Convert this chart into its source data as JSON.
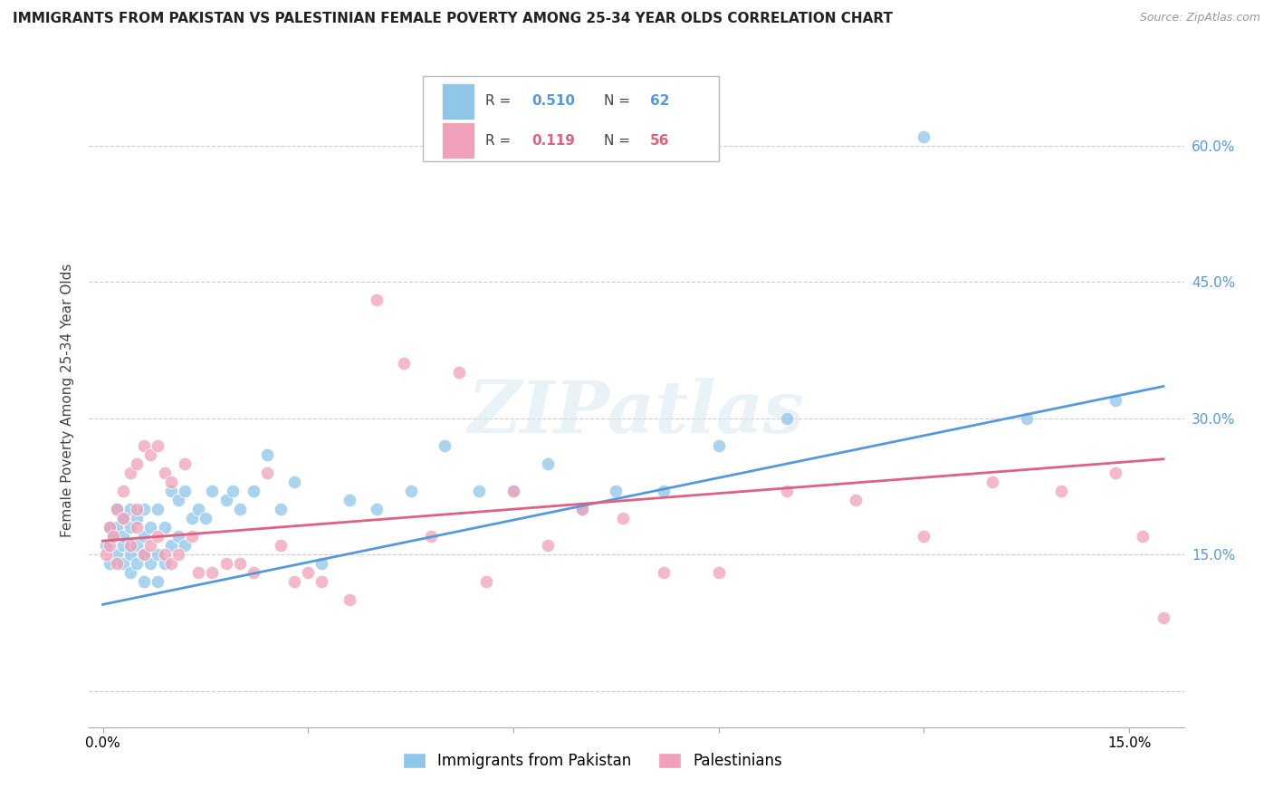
{
  "title": "IMMIGRANTS FROM PAKISTAN VS PALESTINIAN FEMALE POVERTY AMONG 25-34 YEAR OLDS CORRELATION CHART",
  "source": "Source: ZipAtlas.com",
  "ylabel": "Female Poverty Among 25-34 Year Olds",
  "y_ticks": [
    0.0,
    0.15,
    0.3,
    0.45,
    0.6
  ],
  "y_tick_labels": [
    "",
    "15.0%",
    "30.0%",
    "45.0%",
    "60.0%"
  ],
  "x_ticks": [
    0.0,
    0.03,
    0.06,
    0.09,
    0.12,
    0.15
  ],
  "x_tick_labels": [
    "0.0%",
    "",
    "",
    "",
    "",
    "15.0%"
  ],
  "xlim": [
    -0.002,
    0.158
  ],
  "ylim": [
    -0.04,
    0.68
  ],
  "blue_color": "#8ec6e8",
  "pink_color": "#f0a0b8",
  "blue_line_color": "#5599dd",
  "pink_line_color": "#e06080",
  "legend_R1": "0.510",
  "legend_N1": "62",
  "legend_R2": "0.119",
  "legend_N2": "56",
  "label1": "Immigrants from Pakistan",
  "label2": "Palestinians",
  "watermark": "ZIPatlas",
  "blue_scatter_x": [
    0.0005,
    0.001,
    0.001,
    0.0015,
    0.002,
    0.002,
    0.002,
    0.003,
    0.003,
    0.003,
    0.003,
    0.004,
    0.004,
    0.004,
    0.004,
    0.005,
    0.005,
    0.005,
    0.006,
    0.006,
    0.006,
    0.006,
    0.007,
    0.007,
    0.008,
    0.008,
    0.008,
    0.009,
    0.009,
    0.01,
    0.01,
    0.011,
    0.011,
    0.012,
    0.012,
    0.013,
    0.014,
    0.015,
    0.016,
    0.018,
    0.019,
    0.02,
    0.022,
    0.024,
    0.026,
    0.028,
    0.032,
    0.036,
    0.04,
    0.045,
    0.05,
    0.055,
    0.06,
    0.065,
    0.07,
    0.075,
    0.082,
    0.09,
    0.1,
    0.12,
    0.135,
    0.148
  ],
  "blue_scatter_y": [
    0.16,
    0.18,
    0.14,
    0.17,
    0.15,
    0.2,
    0.18,
    0.14,
    0.16,
    0.19,
    0.17,
    0.13,
    0.15,
    0.18,
    0.2,
    0.14,
    0.16,
    0.19,
    0.12,
    0.15,
    0.17,
    0.2,
    0.14,
    0.18,
    0.12,
    0.15,
    0.2,
    0.14,
    0.18,
    0.16,
    0.22,
    0.17,
    0.21,
    0.16,
    0.22,
    0.19,
    0.2,
    0.19,
    0.22,
    0.21,
    0.22,
    0.2,
    0.22,
    0.26,
    0.2,
    0.23,
    0.14,
    0.21,
    0.2,
    0.22,
    0.27,
    0.22,
    0.22,
    0.25,
    0.2,
    0.22,
    0.22,
    0.27,
    0.3,
    0.61,
    0.3,
    0.32
  ],
  "pink_scatter_x": [
    0.0005,
    0.001,
    0.001,
    0.0015,
    0.002,
    0.002,
    0.003,
    0.003,
    0.004,
    0.004,
    0.005,
    0.005,
    0.005,
    0.006,
    0.006,
    0.007,
    0.007,
    0.008,
    0.008,
    0.009,
    0.009,
    0.01,
    0.01,
    0.011,
    0.012,
    0.013,
    0.014,
    0.016,
    0.018,
    0.02,
    0.022,
    0.024,
    0.026,
    0.028,
    0.03,
    0.032,
    0.036,
    0.04,
    0.044,
    0.048,
    0.052,
    0.056,
    0.06,
    0.065,
    0.07,
    0.076,
    0.082,
    0.09,
    0.1,
    0.11,
    0.12,
    0.13,
    0.14,
    0.148,
    0.152,
    0.155
  ],
  "pink_scatter_y": [
    0.15,
    0.16,
    0.18,
    0.17,
    0.14,
    0.2,
    0.19,
    0.22,
    0.16,
    0.24,
    0.18,
    0.2,
    0.25,
    0.15,
    0.27,
    0.16,
    0.26,
    0.17,
    0.27,
    0.15,
    0.24,
    0.14,
    0.23,
    0.15,
    0.25,
    0.17,
    0.13,
    0.13,
    0.14,
    0.14,
    0.13,
    0.24,
    0.16,
    0.12,
    0.13,
    0.12,
    0.1,
    0.43,
    0.36,
    0.17,
    0.35,
    0.12,
    0.22,
    0.16,
    0.2,
    0.19,
    0.13,
    0.13,
    0.22,
    0.21,
    0.17,
    0.23,
    0.22,
    0.24,
    0.17,
    0.08
  ]
}
